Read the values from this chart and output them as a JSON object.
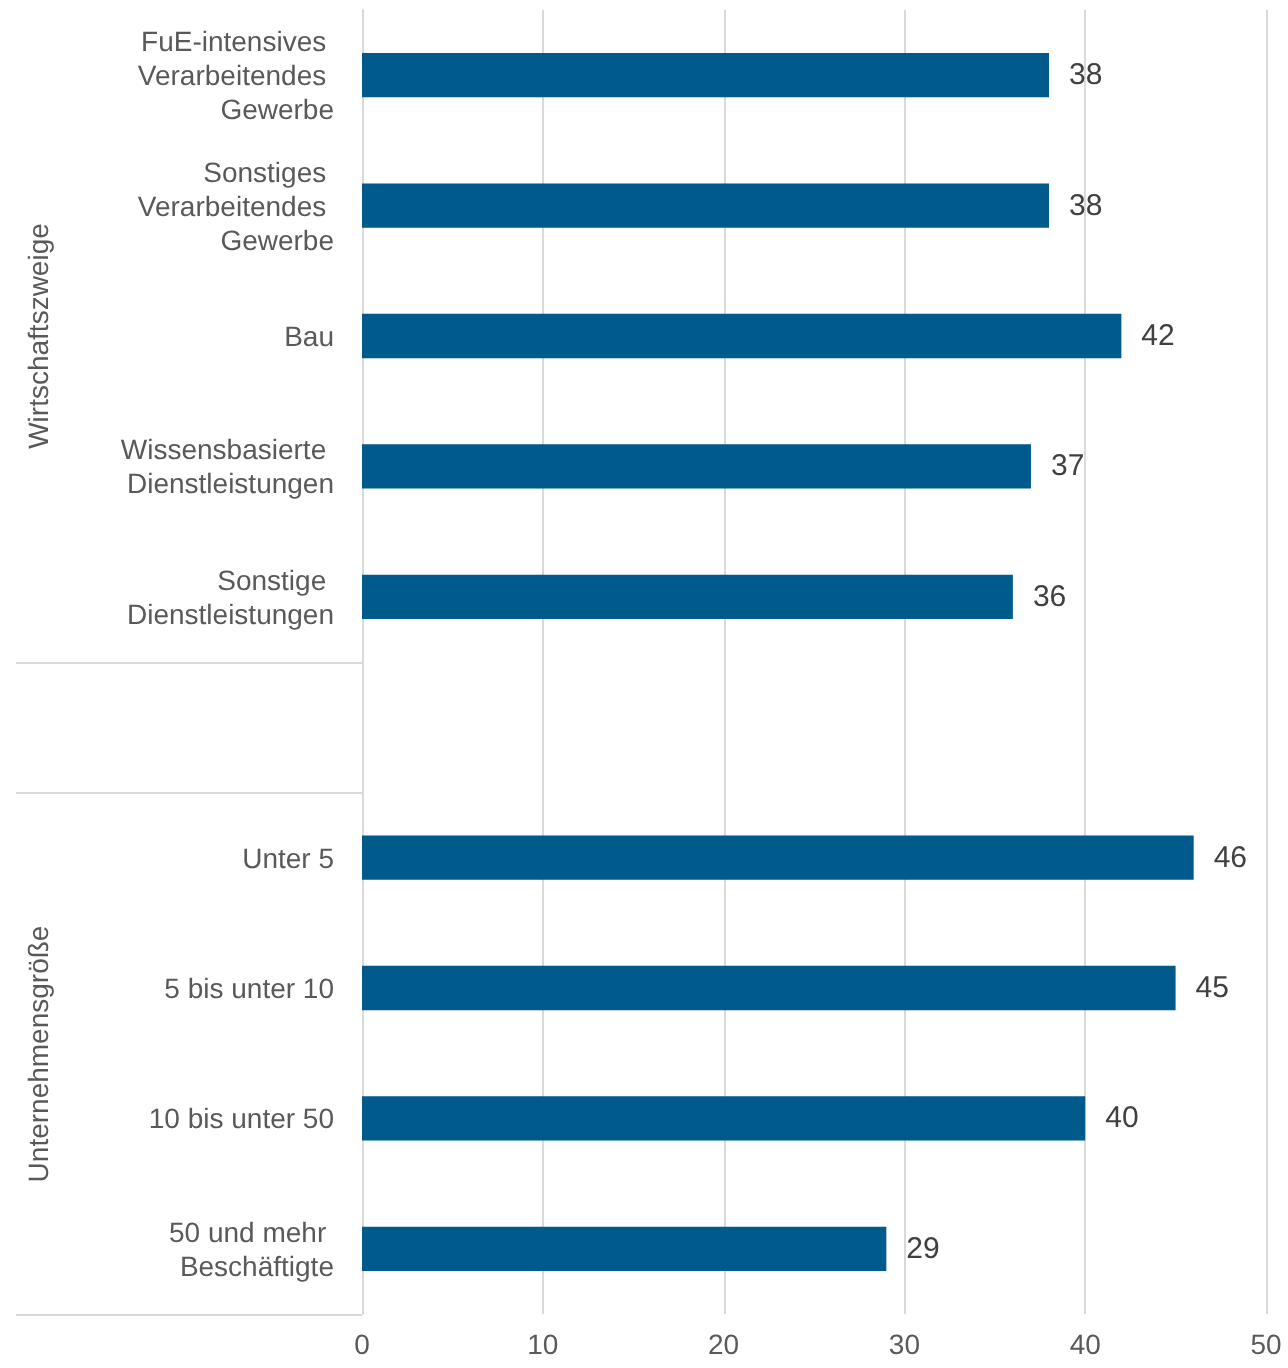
{
  "chart_data": {
    "type": "bar",
    "orientation": "horizontal",
    "categories": [
      "FuE-intensives Verarbeitendes Gewerbe",
      "Sonstiges Verarbeitendes Gewerbe",
      "Bau",
      "Wissensbasierte Dienstleistungen",
      "Sonstige Dienstleistungen",
      null,
      "Unter 5",
      "5 bis unter 10",
      "10 bis unter 50",
      "50 und mehr Beschäftigte"
    ],
    "values": [
      38,
      38,
      42,
      37,
      36,
      null,
      46,
      45,
      40,
      29
    ],
    "color": "#005a8c",
    "xlim": [
      0,
      50
    ],
    "xticks": [
      0,
      10,
      20,
      30,
      40,
      50
    ],
    "grid": "x",
    "data_labels": true,
    "annotations": [
      "Wirtschaftszweige",
      "Unternehmensgröße"
    ]
  }
}
